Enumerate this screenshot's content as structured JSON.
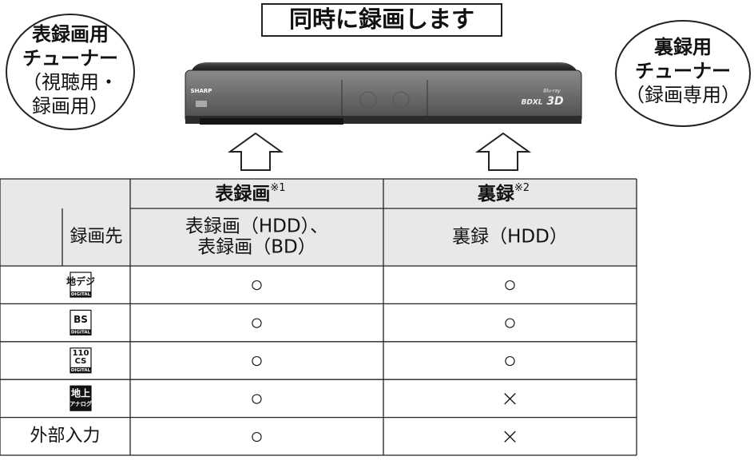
{
  "title": "同時に録画します",
  "left_bubble": {
    "lines": [
      "表録画用",
      "チューナー",
      "（視聴用・",
      "録画用）"
    ]
  },
  "right_bubble": {
    "lines": [
      "裏録用",
      "チューナー",
      "（録画専用）"
    ]
  },
  "device": {
    "brand": "SHARP",
    "logo": "BDXL",
    "badge": "3D",
    "disc": "Blu-ray"
  },
  "table": {
    "columns": [
      {
        "label": "表録画",
        "note": "※1"
      },
      {
        "label": "裏録",
        "note": "※2"
      }
    ],
    "destination": {
      "label": "録画先",
      "cells": [
        [
          "表録画（HDD）、",
          "表録画（BD）"
        ],
        [
          "裏録（HDD）"
        ]
      ]
    },
    "rows": [
      {
        "icon": [
          "地デジ",
          "DIGITAL"
        ],
        "cells": [
          "○",
          "○"
        ]
      },
      {
        "icon": [
          "BS",
          "DIGITAL"
        ],
        "cells": [
          "○",
          "○"
        ]
      },
      {
        "icon": [
          "110",
          "CS",
          "DIGITAL"
        ],
        "cells": [
          "○",
          "○"
        ]
      },
      {
        "icon": [
          "地上",
          "アナログ"
        ],
        "cells": [
          "○",
          "×"
        ]
      },
      {
        "label": "外部入力",
        "cells": [
          "○",
          "×"
        ]
      }
    ]
  }
}
